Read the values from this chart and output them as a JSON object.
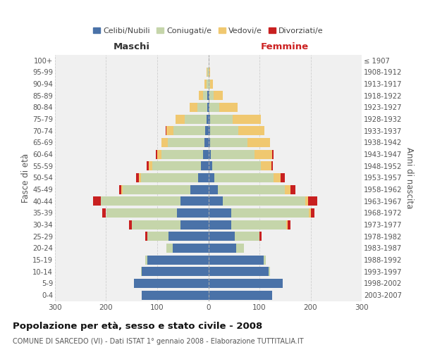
{
  "age_groups": [
    "0-4",
    "5-9",
    "10-14",
    "15-19",
    "20-24",
    "25-29",
    "30-34",
    "35-39",
    "40-44",
    "45-49",
    "50-54",
    "55-59",
    "60-64",
    "65-69",
    "70-74",
    "75-79",
    "80-84",
    "85-89",
    "90-94",
    "95-99",
    "100+"
  ],
  "birth_years": [
    "2003-2007",
    "1998-2002",
    "1993-1997",
    "1988-1992",
    "1983-1987",
    "1978-1982",
    "1973-1977",
    "1968-1972",
    "1963-1967",
    "1958-1962",
    "1953-1957",
    "1948-1952",
    "1943-1947",
    "1938-1942",
    "1933-1937",
    "1928-1932",
    "1923-1927",
    "1918-1922",
    "1913-1917",
    "1908-1912",
    "≤ 1907"
  ],
  "male": {
    "celibi": [
      130,
      145,
      130,
      120,
      70,
      78,
      55,
      62,
      55,
      35,
      20,
      15,
      10,
      8,
      6,
      4,
      2,
      2,
      0,
      0,
      0
    ],
    "coniugati": [
      0,
      1,
      2,
      4,
      12,
      42,
      95,
      138,
      155,
      132,
      112,
      95,
      82,
      72,
      62,
      42,
      20,
      8,
      4,
      2,
      0
    ],
    "vedovi": [
      0,
      0,
      0,
      0,
      0,
      0,
      0,
      0,
      0,
      3,
      4,
      6,
      8,
      12,
      14,
      18,
      15,
      8,
      4,
      2,
      0
    ],
    "divorziati": [
      0,
      0,
      0,
      0,
      0,
      4,
      5,
      8,
      15,
      5,
      5,
      4,
      3,
      0,
      2,
      0,
      0,
      0,
      0,
      0,
      0
    ]
  },
  "female": {
    "nubili": [
      125,
      145,
      118,
      108,
      55,
      52,
      45,
      45,
      28,
      18,
      12,
      8,
      5,
      4,
      4,
      3,
      2,
      2,
      1,
      0,
      0
    ],
    "coniugate": [
      0,
      1,
      2,
      4,
      14,
      48,
      108,
      152,
      162,
      132,
      115,
      95,
      85,
      72,
      55,
      45,
      20,
      8,
      3,
      1,
      0
    ],
    "vedove": [
      0,
      0,
      0,
      0,
      0,
      0,
      2,
      3,
      5,
      10,
      15,
      20,
      35,
      45,
      50,
      55,
      35,
      18,
      5,
      2,
      0
    ],
    "divorziate": [
      0,
      0,
      0,
      0,
      0,
      4,
      5,
      8,
      18,
      10,
      8,
      3,
      3,
      0,
      0,
      0,
      0,
      0,
      0,
      0,
      0
    ]
  },
  "colors": {
    "celibi_nubili": "#4a72a8",
    "coniugati": "#c5d5aa",
    "vedovi": "#f0c870",
    "divorziati": "#c82020"
  },
  "title": "Popolazione per età, sesso e stato civile - 2008",
  "subtitle": "COMUNE DI SARCEDO (VI) - Dati ISTAT 1° gennaio 2008 - Elaborazione TUTTITALIA.IT",
  "xlabel_left": "Maschi",
  "xlabel_right": "Femmine",
  "ylabel_left": "Fasce di età",
  "ylabel_right": "Anni di nascita",
  "xlim": 300,
  "background_color": "#ffffff",
  "plot_bg": "#f0f0f0",
  "grid_color": "#cccccc",
  "legend_labels": [
    "Celibi/Nubili",
    "Coniugati/e",
    "Vedovi/e",
    "Divorziati/e"
  ]
}
